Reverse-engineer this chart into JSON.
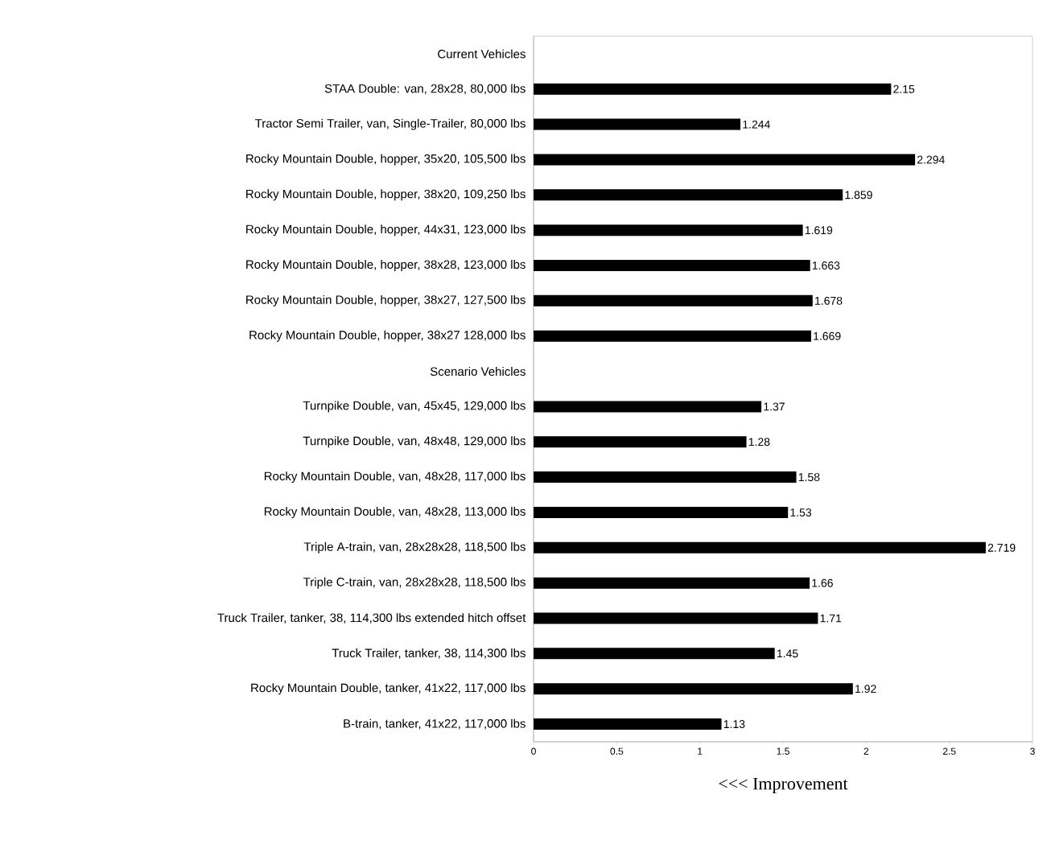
{
  "chart_data": {
    "type": "bar",
    "orientation": "horizontal",
    "categories": [
      "Current Vehicles",
      "STAA Double: van, 28x28, 80,000 lbs",
      "Tractor Semi Trailer, van, Single-Trailer, 80,000 lbs",
      "Rocky Mountain Double, hopper, 35x20, 105,500 lbs",
      "Rocky Mountain Double, hopper, 38x20, 109,250 lbs",
      "Rocky Mountain Double, hopper, 44x31, 123,000 lbs",
      "Rocky Mountain Double, hopper, 38x28, 123,000 lbs",
      "Rocky Mountain Double, hopper, 38x27, 127,500 lbs",
      "Rocky Mountain Double, hopper, 38x27 128,000 lbs",
      "Scenario Vehicles",
      "Turnpike Double, van, 45x45, 129,000 lbs",
      "Turnpike Double, van, 48x48, 129,000 lbs",
      "Rocky Mountain Double, van, 48x28, 117,000 lbs",
      "Rocky Mountain Double, van, 48x28, 113,000 lbs",
      "Triple A-train, van, 28x28x28, 118,500 lbs",
      "Triple C-train, van, 28x28x28, 118,500 lbs",
      "Truck Trailer, tanker, 38, 114,300 lbs extended hitch offset",
      "Truck Trailer, tanker, 38, 114,300 lbs",
      "Rocky Mountain Double, tanker, 41x22, 117,000 lbs",
      "B-train, tanker, 41x22, 117,000 lbs"
    ],
    "values": [
      null,
      2.15,
      1.244,
      2.294,
      1.859,
      1.619,
      1.663,
      1.678,
      1.669,
      null,
      1.37,
      1.28,
      1.58,
      1.53,
      2.719,
      1.66,
      1.71,
      1.45,
      1.92,
      1.13
    ],
    "color": "#000000",
    "data_labels": true,
    "xlabel": "<<< Improvement",
    "xlim": [
      0,
      3
    ],
    "xticks": [
      0,
      0.5,
      1,
      1.5,
      2,
      2.5,
      3
    ]
  }
}
